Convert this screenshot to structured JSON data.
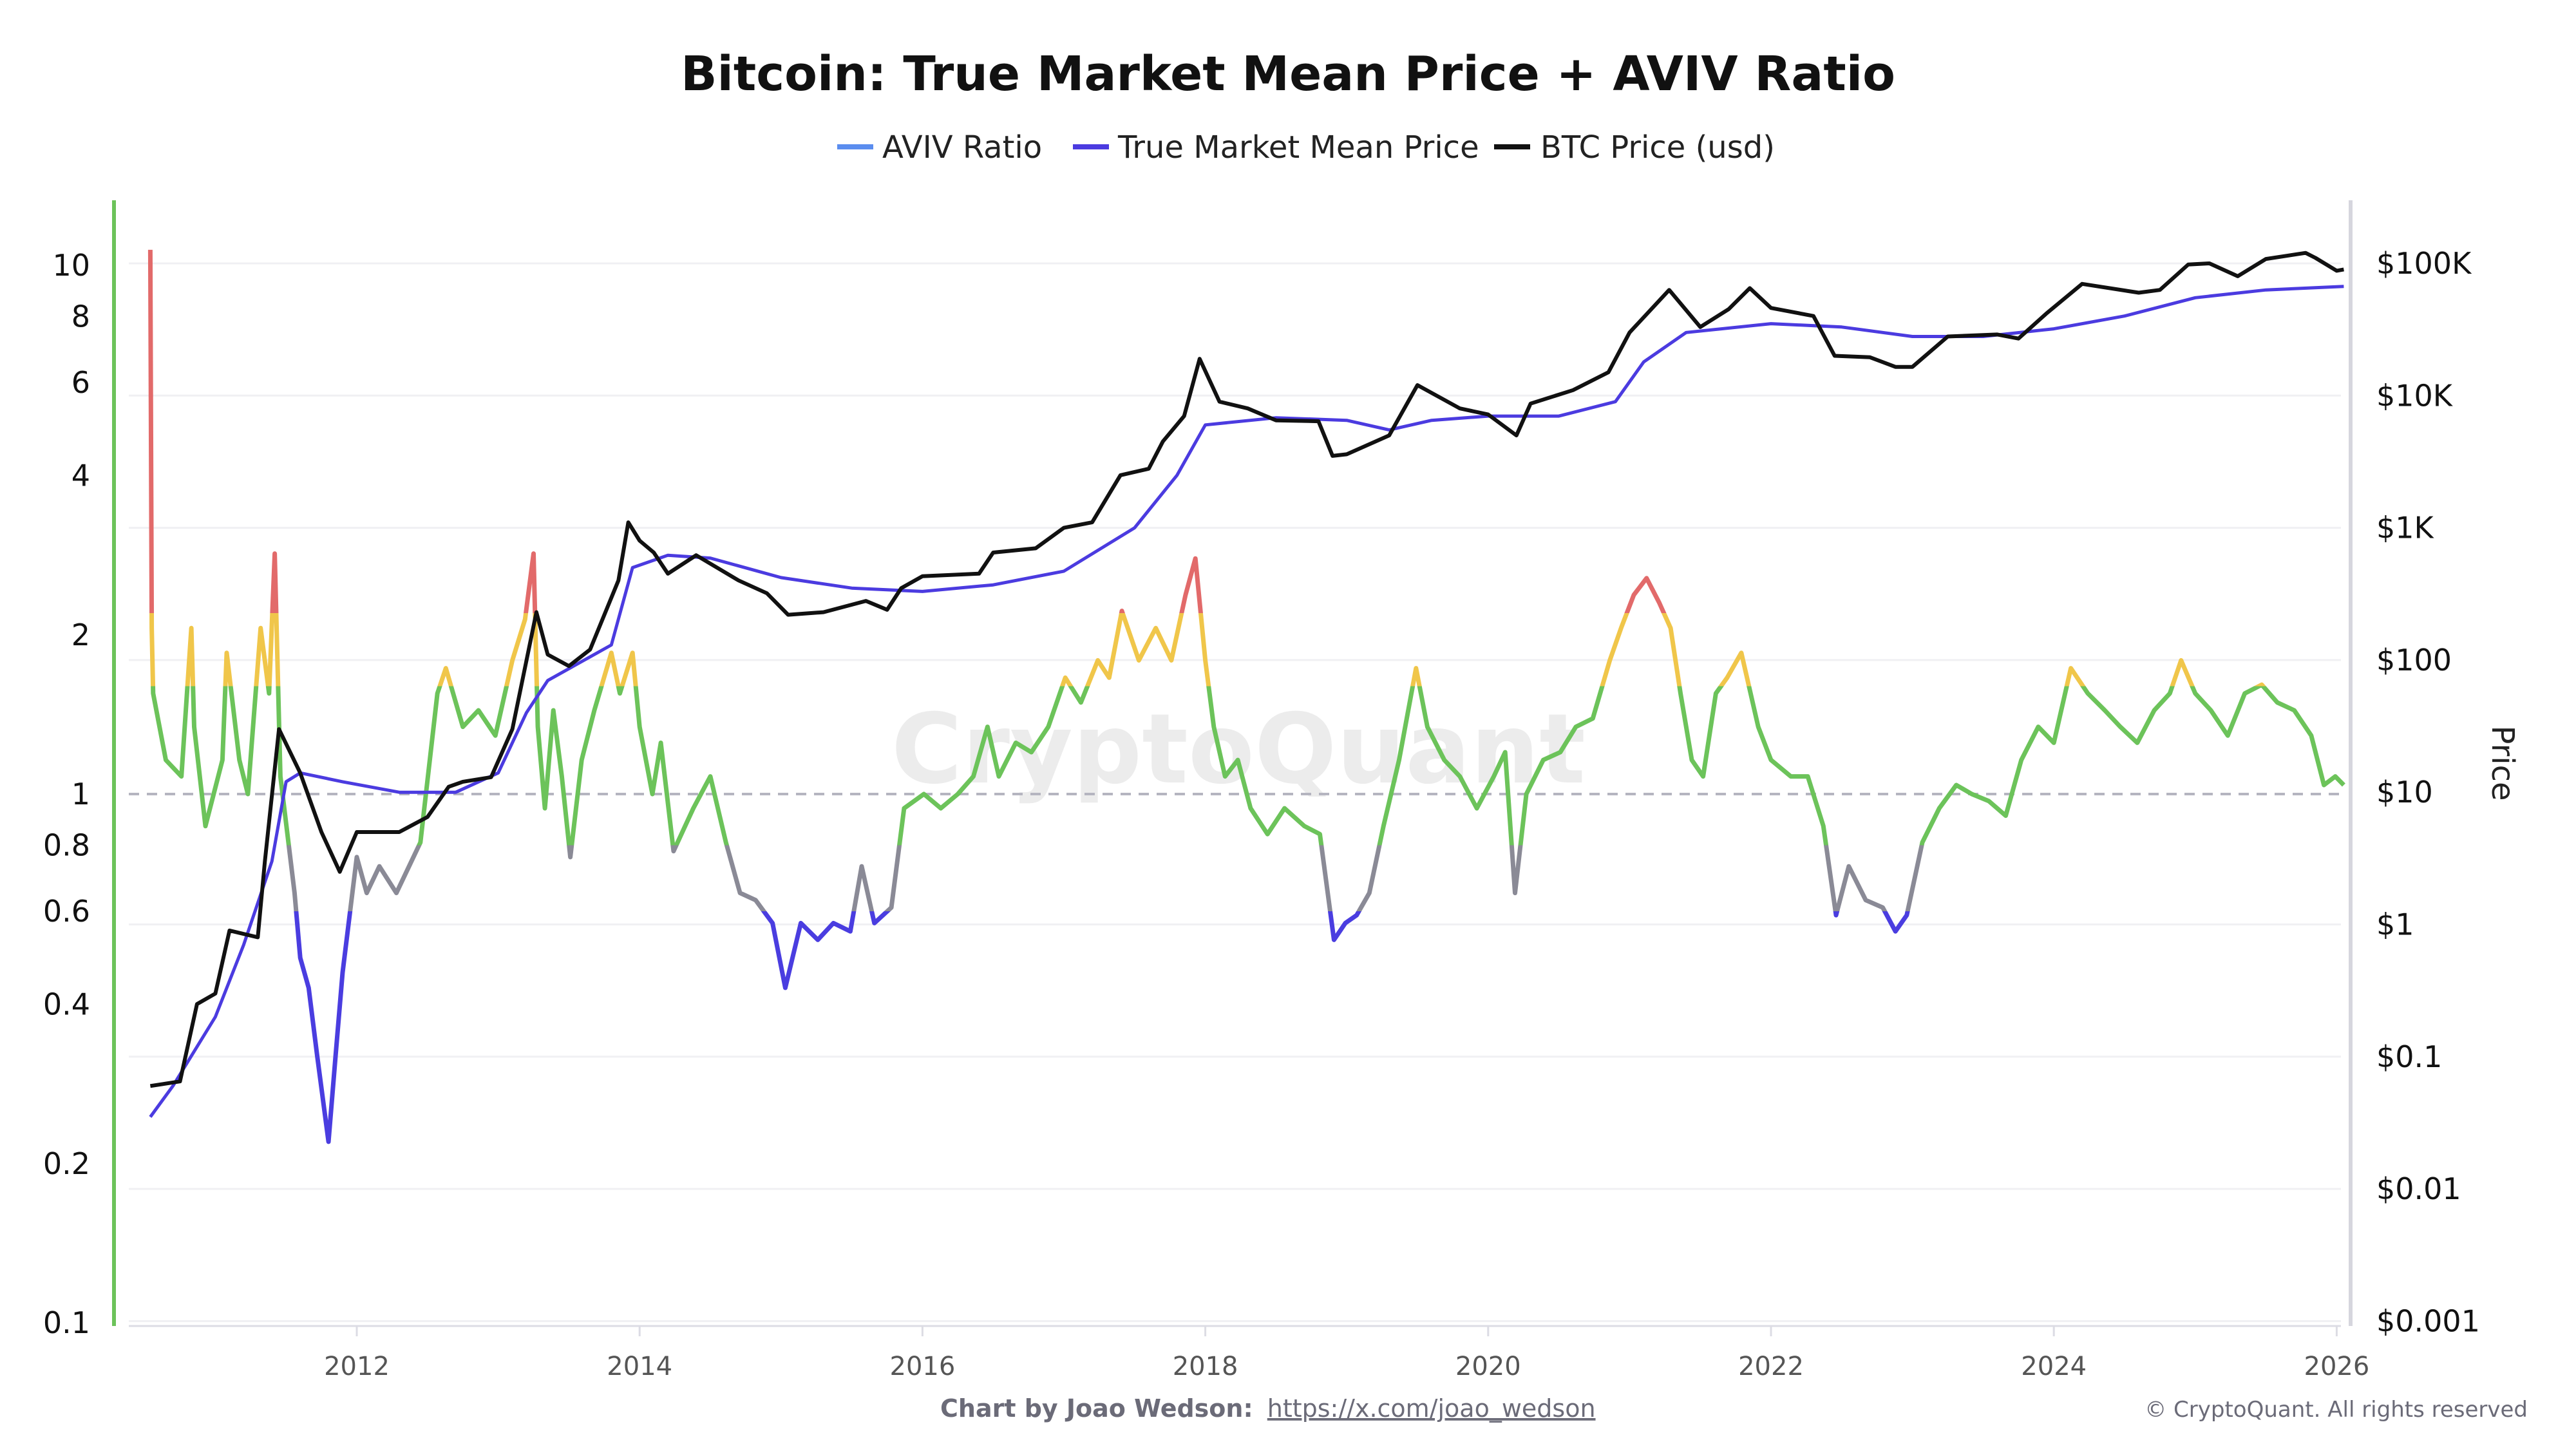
{
  "title": "Bitcoin: True Market Mean Price + AVIV Ratio",
  "legend": [
    {
      "label": "AVIV Ratio",
      "color": "#5b8def"
    },
    {
      "label": "True Market Mean Price",
      "color": "#4b3be0"
    },
    {
      "label": "BTC Price (usd)",
      "color": "#111111"
    }
  ],
  "watermark": "CryptoQuant",
  "footer": {
    "credit": "Chart by Joao Wedson:",
    "link": "https://x.com/joao_wedson",
    "copyright": "© CryptoQuant. All rights reserved"
  },
  "chart_data": {
    "type": "line",
    "title": "Bitcoin: True Market Mean Price + AVIV Ratio",
    "xlabel": "",
    "x_ticks": [
      "2012",
      "2014",
      "2016",
      "2018",
      "2020",
      "2022",
      "2024",
      "2026"
    ],
    "xlim": [
      2010.5,
      2026.1
    ],
    "grid": true,
    "legend_position": "top-center",
    "left_axis": {
      "scale": "log",
      "ylim": [
        0.1,
        13
      ],
      "ticks": [
        "10",
        "8",
        "6",
        "4",
        "2",
        "1",
        "0.8",
        "0.6",
        "0.4",
        "0.2",
        "0.1"
      ],
      "reference_line": 1
    },
    "right_axis": {
      "scale": "log",
      "label": "Price",
      "ylim": [
        0.001,
        290000
      ],
      "ticks": [
        "$100K",
        "$10K",
        "$1K",
        "$100",
        "$10",
        "$1",
        "$0.1",
        "$0.01",
        "$0.001"
      ]
    },
    "aviv_color_bands": [
      {
        "min": 2.2,
        "color": "#e26a6a"
      },
      {
        "min": 1.6,
        "color": "#f0c64a"
      },
      {
        "min": 0.8,
        "color": "#6cc35a"
      },
      {
        "min": 0.6,
        "color": "#8a8a96"
      },
      {
        "min": 0,
        "color": "#4a3de0"
      }
    ],
    "series": [
      {
        "name": "AVIV Ratio",
        "axis": "left",
        "x": [
          2010.54,
          2010.55,
          2010.56,
          2010.65,
          2010.76,
          2010.83,
          2010.85,
          2010.93,
          2011.05,
          2011.08,
          2011.17,
          2011.23,
          2011.32,
          2011.38,
          2011.42,
          2011.46,
          2011.56,
          2011.6,
          2011.66,
          2011.72,
          2011.8,
          2011.85,
          2011.9,
          2012.0,
          2012.07,
          2012.16,
          2012.28,
          2012.45,
          2012.57,
          2012.63,
          2012.75,
          2012.86,
          2012.98,
          2013.1,
          2013.19,
          2013.25,
          2013.28,
          2013.33,
          2013.39,
          2013.45,
          2013.51,
          2013.59,
          2013.68,
          2013.8,
          2013.86,
          2013.95,
          2014.0,
          2014.09,
          2014.15,
          2014.24,
          2014.38,
          2014.5,
          2014.61,
          2014.71,
          2014.82,
          2014.94,
          2015.03,
          2015.14,
          2015.26,
          2015.37,
          2015.49,
          2015.57,
          2015.66,
          2015.78,
          2015.87,
          2016.01,
          2016.13,
          2016.25,
          2016.36,
          2016.46,
          2016.54,
          2016.66,
          2016.77,
          2016.89,
          2017.01,
          2017.12,
          2017.24,
          2017.32,
          2017.41,
          2017.53,
          2017.65,
          2017.76,
          2017.86,
          2017.93,
          2018.0,
          2018.06,
          2018.14,
          2018.23,
          2018.32,
          2018.44,
          2018.56,
          2018.7,
          2018.81,
          2018.91,
          2018.99,
          2019.07,
          2019.16,
          2019.26,
          2019.37,
          2019.49,
          2019.57,
          2019.69,
          2019.8,
          2019.92,
          2020.04,
          2020.12,
          2020.19,
          2020.27,
          2020.39,
          2020.51,
          2020.62,
          2020.74,
          2020.86,
          2020.94,
          2021.03,
          2021.12,
          2021.21,
          2021.29,
          2021.36,
          2021.44,
          2021.52,
          2021.61,
          2021.69,
          2021.79,
          2021.91,
          2022.0,
          2022.14,
          2022.26,
          2022.37,
          2022.46,
          2022.55,
          2022.67,
          2022.79,
          2022.88,
          2022.96,
          2023.07,
          2023.19,
          2023.31,
          2023.42,
          2023.54,
          2023.66,
          2023.77,
          2023.89,
          2024.0,
          2024.12,
          2024.24,
          2024.36,
          2024.47,
          2024.59,
          2024.71,
          2024.82,
          2024.9,
          2025.0,
          2025.11,
          2025.23,
          2025.35,
          2025.47,
          2025.58,
          2025.7,
          2025.82,
          2025.91,
          2025.99,
          2026.05
        ],
        "values": [
          10.7,
          2.06,
          1.55,
          1.16,
          1.08,
          2.06,
          1.34,
          0.87,
          1.16,
          1.85,
          1.16,
          1.0,
          2.06,
          1.55,
          2.85,
          1.08,
          0.65,
          0.49,
          0.43,
          0.32,
          0.22,
          0.32,
          0.46,
          0.76,
          0.65,
          0.73,
          0.65,
          0.81,
          1.55,
          1.73,
          1.34,
          1.44,
          1.29,
          1.79,
          2.14,
          2.85,
          1.34,
          0.94,
          1.44,
          1.08,
          0.76,
          1.16,
          1.44,
          1.85,
          1.55,
          1.85,
          1.34,
          1.0,
          1.25,
          0.78,
          0.94,
          1.08,
          0.81,
          0.65,
          0.63,
          0.57,
          0.43,
          0.57,
          0.53,
          0.57,
          0.55,
          0.73,
          0.57,
          0.61,
          0.94,
          1.0,
          0.94,
          1.0,
          1.08,
          1.34,
          1.08,
          1.25,
          1.2,
          1.34,
          1.66,
          1.49,
          1.79,
          1.66,
          2.22,
          1.79,
          2.06,
          1.79,
          2.38,
          2.79,
          1.79,
          1.34,
          1.08,
          1.16,
          0.94,
          0.84,
          0.94,
          0.87,
          0.84,
          0.53,
          0.57,
          0.59,
          0.65,
          0.87,
          1.16,
          1.73,
          1.34,
          1.16,
          1.08,
          0.94,
          1.08,
          1.2,
          0.65,
          1.0,
          1.16,
          1.2,
          1.34,
          1.39,
          1.79,
          2.06,
          2.38,
          2.56,
          2.3,
          2.06,
          1.55,
          1.16,
          1.08,
          1.55,
          1.66,
          1.85,
          1.34,
          1.16,
          1.08,
          1.08,
          0.87,
          0.59,
          0.73,
          0.63,
          0.61,
          0.55,
          0.59,
          0.81,
          0.94,
          1.04,
          1.0,
          0.97,
          0.91,
          1.16,
          1.34,
          1.25,
          1.73,
          1.55,
          1.44,
          1.34,
          1.25,
          1.44,
          1.55,
          1.79,
          1.55,
          1.44,
          1.29,
          1.55,
          1.61,
          1.49,
          1.44,
          1.29,
          1.04,
          1.08,
          1.04
        ]
      },
      {
        "name": "True Market Mean Price",
        "axis": "right",
        "x": [
          2010.54,
          2010.7,
          2011.0,
          2011.2,
          2011.4,
          2011.5,
          2011.6,
          2011.9,
          2012.3,
          2012.7,
          2013.0,
          2013.2,
          2013.35,
          2013.8,
          2013.95,
          2014.2,
          2014.5,
          2015.0,
          2015.5,
          2016.0,
          2016.5,
          2017.0,
          2017.5,
          2017.8,
          2018.0,
          2018.5,
          2019.0,
          2019.3,
          2019.6,
          2020.0,
          2020.5,
          2020.9,
          2021.1,
          2021.4,
          2022.0,
          2022.5,
          2023.0,
          2023.5,
          2024.0,
          2024.5,
          2025.0,
          2025.5,
          2026.05
        ],
        "values": [
          0.035,
          0.06,
          0.2,
          0.7,
          3,
          12,
          14,
          12,
          10,
          10,
          14,
          40,
          70,
          130,
          500,
          620,
          590,
          420,
          350,
          330,
          370,
          470,
          1000,
          2500,
          6000,
          6800,
          6500,
          5500,
          6500,
          7000,
          7000,
          9000,
          18000,
          30000,
          35000,
          33000,
          28000,
          28000,
          32000,
          40000,
          55000,
          63000,
          67000
        ]
      },
      {
        "name": "BTC Price (usd)",
        "axis": "right",
        "x": [
          2010.54,
          2010.75,
          2010.87,
          2011.0,
          2011.1,
          2011.3,
          2011.35,
          2011.45,
          2011.6,
          2011.75,
          2011.88,
          2012.0,
          2012.3,
          2012.5,
          2012.65,
          2012.75,
          2012.95,
          2013.1,
          2013.27,
          2013.35,
          2013.5,
          2013.65,
          2013.85,
          2013.92,
          2014.0,
          2014.1,
          2014.2,
          2014.4,
          2014.7,
          2014.9,
          2015.05,
          2015.3,
          2015.6,
          2015.75,
          2015.85,
          2016.0,
          2016.4,
          2016.5,
          2016.8,
          2017.0,
          2017.2,
          2017.4,
          2017.6,
          2017.7,
          2017.85,
          2017.96,
          2018.1,
          2018.3,
          2018.5,
          2018.8,
          2018.9,
          2019.0,
          2019.3,
          2019.5,
          2019.8,
          2020.0,
          2020.2,
          2020.3,
          2020.6,
          2020.85,
          2021.0,
          2021.28,
          2021.5,
          2021.7,
          2021.85,
          2022.0,
          2022.3,
          2022.45,
          2022.7,
          2022.88,
          2023.0,
          2023.25,
          2023.6,
          2023.75,
          2023.95,
          2024.2,
          2024.6,
          2024.75,
          2024.95,
          2025.1,
          2025.3,
          2025.5,
          2025.78,
          2025.85,
          2026.0,
          2026.05
        ],
        "values": [
          0.06,
          0.065,
          0.25,
          0.3,
          0.9,
          0.8,
          3,
          30,
          14,
          5,
          2.5,
          5,
          5,
          6.5,
          11,
          12,
          13,
          30,
          230,
          110,
          90,
          120,
          400,
          1100,
          800,
          650,
          450,
          620,
          400,
          320,
          220,
          230,
          280,
          240,
          350,
          430,
          450,
          650,
          700,
          1000,
          1100,
          2500,
          2800,
          4500,
          7000,
          19000,
          9000,
          8000,
          6500,
          6400,
          3500,
          3600,
          5000,
          12000,
          8000,
          7200,
          5000,
          8700,
          11000,
          15000,
          30000,
          63000,
          33000,
          45000,
          65000,
          46000,
          40000,
          20000,
          19500,
          16500,
          16500,
          28000,
          29000,
          27000,
          42000,
          70000,
          60000,
          63000,
          98000,
          100000,
          80000,
          108000,
          120000,
          110000,
          88000,
          90000
        ]
      }
    ]
  }
}
